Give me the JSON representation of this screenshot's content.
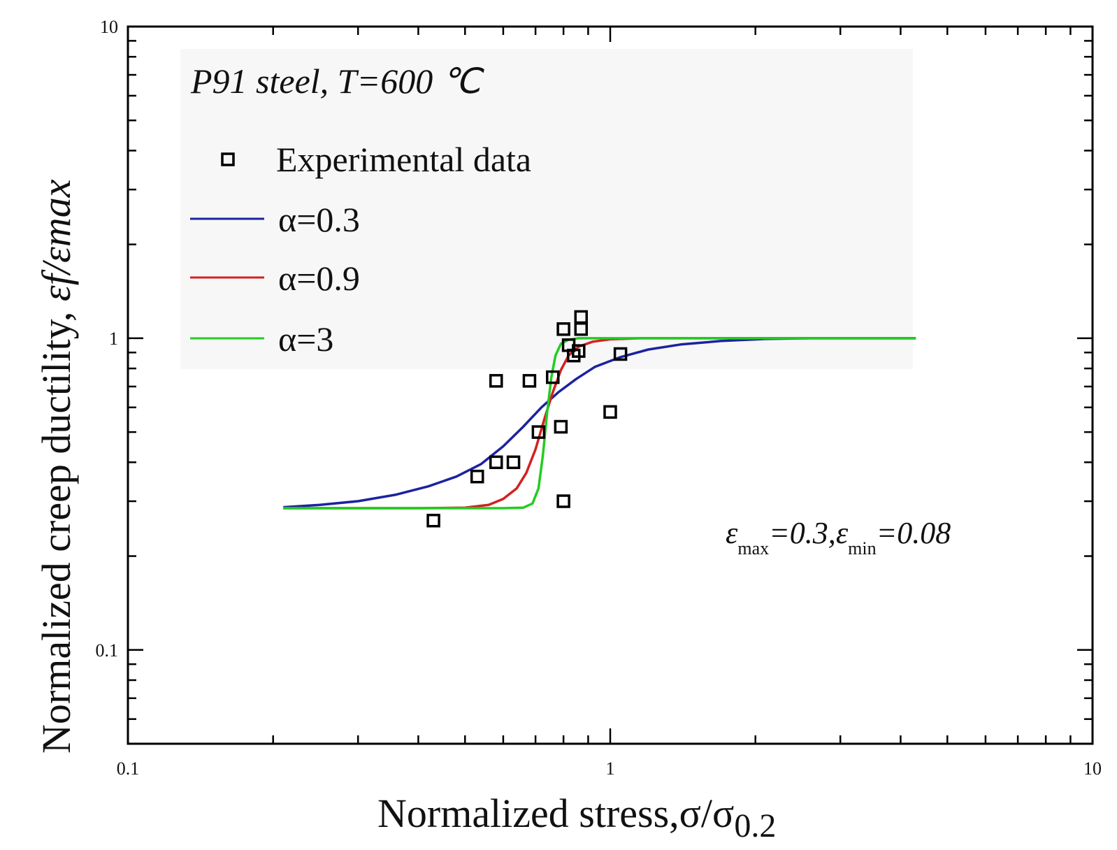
{
  "chart_data": {
    "type": "scatter",
    "xscale": "log",
    "yscale": "log",
    "xlim": [
      0.1,
      10
    ],
    "ylim": [
      0.05,
      10
    ],
    "xlabel": "Normalized stress,σ/σ0.2",
    "xlabel_main": "Normalized stress,σ/σ",
    "xlabel_sub": "0.2",
    "ylabel": "Normalized creep ductility, εf/εmax",
    "ylabel_main": "Normalized creep ductility, ",
    "ylabel_italic": "εf/εmax",
    "x_ticks": [
      {
        "value": 0.1,
        "label": "0.1"
      },
      {
        "value": 1,
        "label": "1"
      },
      {
        "value": 10,
        "label": "10"
      }
    ],
    "y_ticks": [
      {
        "value": 0.1,
        "label": "0.1"
      },
      {
        "value": 1,
        "label": "1"
      },
      {
        "value": 10,
        "label": "10"
      }
    ],
    "annotation_title": "P91 steel, T=600 ℃",
    "annotation_params": {
      "eps": "ε",
      "max_sub": "max",
      "max_val": "=0.3,",
      "min_sub": "min",
      "min_val": "=0.08"
    },
    "legend": [
      {
        "label": "Experimental data",
        "type": "marker",
        "color": "#000000"
      },
      {
        "label": "α=0.3",
        "type": "line",
        "color": "#1c22a0"
      },
      {
        "label": "α=0.9",
        "type": "line",
        "color": "#d42020"
      },
      {
        "label": "α=3",
        "type": "line",
        "color": "#22cc22"
      }
    ],
    "series": [
      {
        "name": "Experimental data",
        "kind": "scatter",
        "color": "#000000",
        "points": [
          {
            "x": 0.43,
            "y": 0.26
          },
          {
            "x": 0.53,
            "y": 0.36
          },
          {
            "x": 0.58,
            "y": 0.4
          },
          {
            "x": 0.58,
            "y": 0.73
          },
          {
            "x": 0.63,
            "y": 0.4
          },
          {
            "x": 0.68,
            "y": 0.73
          },
          {
            "x": 0.71,
            "y": 0.5
          },
          {
            "x": 0.76,
            "y": 0.75
          },
          {
            "x": 0.79,
            "y": 0.52
          },
          {
            "x": 0.8,
            "y": 0.3
          },
          {
            "x": 0.8,
            "y": 1.07
          },
          {
            "x": 0.82,
            "y": 0.95
          },
          {
            "x": 0.84,
            "y": 0.88
          },
          {
            "x": 0.86,
            "y": 0.91
          },
          {
            "x": 0.87,
            "y": 1.07
          },
          {
            "x": 0.87,
            "y": 1.17
          },
          {
            "x": 1.0,
            "y": 0.58
          },
          {
            "x": 1.05,
            "y": 0.89
          }
        ]
      },
      {
        "name": "α=0.3",
        "kind": "line",
        "color": "#1c22a0",
        "points": [
          {
            "x": 0.21,
            "y": 0.287
          },
          {
            "x": 0.25,
            "y": 0.292
          },
          {
            "x": 0.3,
            "y": 0.3
          },
          {
            "x": 0.36,
            "y": 0.315
          },
          {
            "x": 0.42,
            "y": 0.335
          },
          {
            "x": 0.48,
            "y": 0.36
          },
          {
            "x": 0.54,
            "y": 0.395
          },
          {
            "x": 0.6,
            "y": 0.45
          },
          {
            "x": 0.66,
            "y": 0.52
          },
          {
            "x": 0.72,
            "y": 0.6
          },
          {
            "x": 0.78,
            "y": 0.67
          },
          {
            "x": 0.85,
            "y": 0.74
          },
          {
            "x": 0.93,
            "y": 0.81
          },
          {
            "x": 1.05,
            "y": 0.87
          },
          {
            "x": 1.2,
            "y": 0.92
          },
          {
            "x": 1.4,
            "y": 0.955
          },
          {
            "x": 1.7,
            "y": 0.98
          },
          {
            "x": 2.1,
            "y": 0.995
          },
          {
            "x": 2.6,
            "y": 1.0
          },
          {
            "x": 4.3,
            "y": 1.0
          }
        ]
      },
      {
        "name": "α=0.9",
        "kind": "line",
        "color": "#d42020",
        "points": [
          {
            "x": 0.21,
            "y": 0.285
          },
          {
            "x": 0.4,
            "y": 0.285
          },
          {
            "x": 0.5,
            "y": 0.286
          },
          {
            "x": 0.56,
            "y": 0.292
          },
          {
            "x": 0.6,
            "y": 0.305
          },
          {
            "x": 0.64,
            "y": 0.33
          },
          {
            "x": 0.67,
            "y": 0.37
          },
          {
            "x": 0.7,
            "y": 0.44
          },
          {
            "x": 0.73,
            "y": 0.55
          },
          {
            "x": 0.76,
            "y": 0.67
          },
          {
            "x": 0.79,
            "y": 0.79
          },
          {
            "x": 0.82,
            "y": 0.88
          },
          {
            "x": 0.86,
            "y": 0.94
          },
          {
            "x": 0.92,
            "y": 0.975
          },
          {
            "x": 1.0,
            "y": 0.992
          },
          {
            "x": 1.15,
            "y": 1.0
          },
          {
            "x": 4.3,
            "y": 1.0
          }
        ]
      },
      {
        "name": "α=3",
        "kind": "line",
        "color": "#22cc22",
        "points": [
          {
            "x": 0.21,
            "y": 0.285
          },
          {
            "x": 0.6,
            "y": 0.285
          },
          {
            "x": 0.66,
            "y": 0.286
          },
          {
            "x": 0.69,
            "y": 0.295
          },
          {
            "x": 0.71,
            "y": 0.33
          },
          {
            "x": 0.725,
            "y": 0.42
          },
          {
            "x": 0.74,
            "y": 0.58
          },
          {
            "x": 0.755,
            "y": 0.75
          },
          {
            "x": 0.77,
            "y": 0.88
          },
          {
            "x": 0.79,
            "y": 0.96
          },
          {
            "x": 0.82,
            "y": 0.99
          },
          {
            "x": 0.86,
            "y": 1.0
          },
          {
            "x": 4.3,
            "y": 1.0
          }
        ]
      }
    ]
  }
}
